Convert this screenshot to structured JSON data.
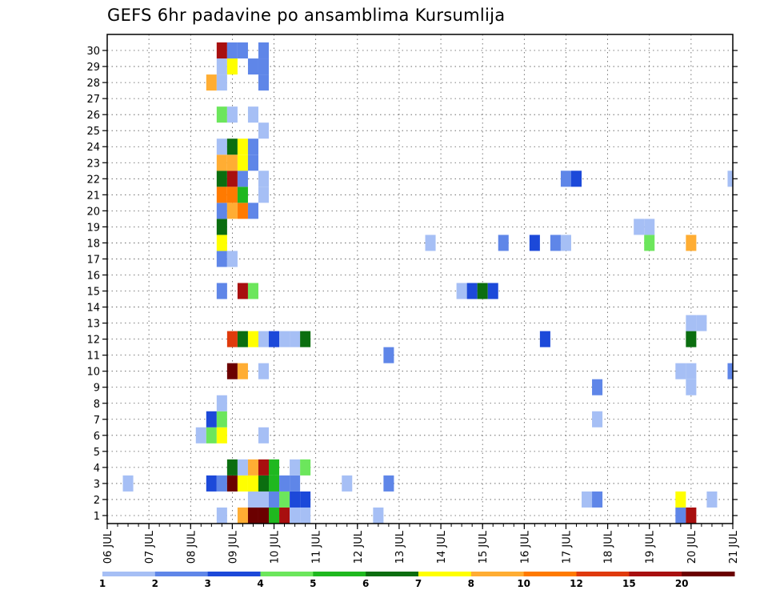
{
  "chart_data": {
    "type": "heatmap",
    "title": "GEFS 6hr padavine po ansamblima Kursumlija",
    "xlabel": "",
    "ylabel": "",
    "x_unit": "6-hour step",
    "x_range": [
      0,
      60
    ],
    "y_range": [
      0,
      30
    ],
    "x_tick_labels": [
      "06 JUL",
      "07 JUL",
      "08 JUL",
      "09 JUL",
      "10 JUL",
      "11 JUL",
      "12 JUL",
      "13 JUL",
      "14 JUL",
      "15 JUL",
      "16 JUL",
      "17 JUL",
      "18 JUL",
      "19 JUL",
      "20 JUL",
      "21 JUL"
    ],
    "y_tick_labels": [
      "1",
      "2",
      "3",
      "4",
      "5",
      "6",
      "7",
      "8",
      "9",
      "10",
      "11",
      "12",
      "13",
      "14",
      "15",
      "16",
      "17",
      "18",
      "19",
      "20",
      "21",
      "22",
      "23",
      "24",
      "25",
      "26",
      "27",
      "28",
      "29",
      "30"
    ],
    "grid": true,
    "colorbar": {
      "labels": [
        "1",
        "2",
        "3",
        "4",
        "5",
        "6",
        "7",
        "8",
        "10",
        "12",
        "15",
        "20"
      ],
      "colors": [
        "#a6bff5",
        "#5f86e8",
        "#1c49d9",
        "#6ce65c",
        "#1fb81f",
        "#0b6e10",
        "#ffff00",
        "#ffad33",
        "#ff7a00",
        "#e03a0c",
        "#a80f0f",
        "#6b0000"
      ]
    },
    "cells": [
      [
        11,
        0,
        1
      ],
      [
        13,
        0,
        8
      ],
      [
        14,
        0,
        12
      ],
      [
        15,
        0,
        12
      ],
      [
        16,
        0,
        5
      ],
      [
        17,
        0,
        11
      ],
      [
        18,
        0,
        1
      ],
      [
        19,
        0,
        1
      ],
      [
        26,
        0,
        1
      ],
      [
        55,
        0,
        2
      ],
      [
        56,
        0,
        11
      ],
      [
        14,
        1,
        1
      ],
      [
        15,
        1,
        1
      ],
      [
        16,
        1,
        2
      ],
      [
        17,
        1,
        4
      ],
      [
        18,
        1,
        3
      ],
      [
        19,
        1,
        3
      ],
      [
        46,
        1,
        1
      ],
      [
        47,
        1,
        2
      ],
      [
        55,
        1,
        7
      ],
      [
        58,
        1,
        1
      ],
      [
        2,
        2,
        1
      ],
      [
        10,
        2,
        3
      ],
      [
        11,
        2,
        2
      ],
      [
        12,
        2,
        12
      ],
      [
        13,
        2,
        7
      ],
      [
        14,
        2,
        7
      ],
      [
        15,
        2,
        6
      ],
      [
        16,
        2,
        5
      ],
      [
        17,
        2,
        2
      ],
      [
        18,
        2,
        2
      ],
      [
        23,
        2,
        1
      ],
      [
        27,
        2,
        2
      ],
      [
        12,
        3,
        6
      ],
      [
        13,
        3,
        1
      ],
      [
        14,
        3,
        8
      ],
      [
        15,
        3,
        11
      ],
      [
        16,
        3,
        5
      ],
      [
        18,
        3,
        1
      ],
      [
        19,
        3,
        4
      ],
      [
        9,
        5,
        1
      ],
      [
        10,
        5,
        4
      ],
      [
        11,
        5,
        7
      ],
      [
        15,
        5,
        1
      ],
      [
        10,
        6,
        3
      ],
      [
        11,
        6,
        4
      ],
      [
        47,
        6,
        1
      ],
      [
        11,
        7,
        1
      ],
      [
        47,
        8,
        2
      ],
      [
        56,
        8,
        1
      ],
      [
        12,
        9,
        12
      ],
      [
        13,
        9,
        8
      ],
      [
        15,
        9,
        1
      ],
      [
        55,
        9,
        1
      ],
      [
        56,
        9,
        1
      ],
      [
        60,
        9,
        2
      ],
      [
        27,
        10,
        2
      ],
      [
        12,
        11,
        10
      ],
      [
        13,
        11,
        6
      ],
      [
        14,
        11,
        7
      ],
      [
        15,
        11,
        1
      ],
      [
        16,
        11,
        3
      ],
      [
        17,
        11,
        1
      ],
      [
        18,
        11,
        1
      ],
      [
        19,
        11,
        6
      ],
      [
        42,
        11,
        3
      ],
      [
        56,
        11,
        6
      ],
      [
        56,
        12,
        1
      ],
      [
        57,
        12,
        1
      ],
      [
        11,
        14,
        2
      ],
      [
        13,
        14,
        11
      ],
      [
        14,
        14,
        4
      ],
      [
        34,
        14,
        1
      ],
      [
        35,
        14,
        3
      ],
      [
        36,
        14,
        6
      ],
      [
        37,
        14,
        3
      ],
      [
        11,
        16,
        2
      ],
      [
        12,
        16,
        1
      ],
      [
        11,
        17,
        7
      ],
      [
        31,
        17,
        1
      ],
      [
        38,
        17,
        2
      ],
      [
        41,
        17,
        3
      ],
      [
        43,
        17,
        2
      ],
      [
        44,
        17,
        1
      ],
      [
        52,
        17,
        4
      ],
      [
        56,
        17,
        8
      ],
      [
        11,
        18,
        6
      ],
      [
        51,
        18,
        1
      ],
      [
        52,
        18,
        1
      ],
      [
        11,
        19,
        2
      ],
      [
        12,
        19,
        8
      ],
      [
        13,
        19,
        9
      ],
      [
        14,
        19,
        2
      ],
      [
        11,
        20,
        9
      ],
      [
        12,
        20,
        9
      ],
      [
        13,
        20,
        5
      ],
      [
        15,
        20,
        1
      ],
      [
        11,
        21,
        6
      ],
      [
        12,
        21,
        11
      ],
      [
        13,
        21,
        2
      ],
      [
        15,
        21,
        1
      ],
      [
        44,
        21,
        2
      ],
      [
        45,
        21,
        3
      ],
      [
        60,
        21,
        1
      ],
      [
        11,
        22,
        8
      ],
      [
        12,
        22,
        8
      ],
      [
        13,
        22,
        7
      ],
      [
        14,
        22,
        2
      ],
      [
        11,
        23,
        1
      ],
      [
        12,
        23,
        6
      ],
      [
        13,
        23,
        7
      ],
      [
        14,
        23,
        2
      ],
      [
        15,
        24,
        1
      ],
      [
        11,
        25,
        4
      ],
      [
        12,
        25,
        1
      ],
      [
        14,
        25,
        1
      ],
      [
        10,
        27,
        8
      ],
      [
        11,
        27,
        1
      ],
      [
        15,
        27,
        2
      ],
      [
        11,
        28,
        1
      ],
      [
        12,
        28,
        7
      ],
      [
        14,
        28,
        2
      ],
      [
        15,
        28,
        2
      ],
      [
        11,
        29,
        11
      ],
      [
        12,
        29,
        2
      ],
      [
        13,
        29,
        2
      ],
      [
        15,
        29,
        2
      ]
    ]
  }
}
